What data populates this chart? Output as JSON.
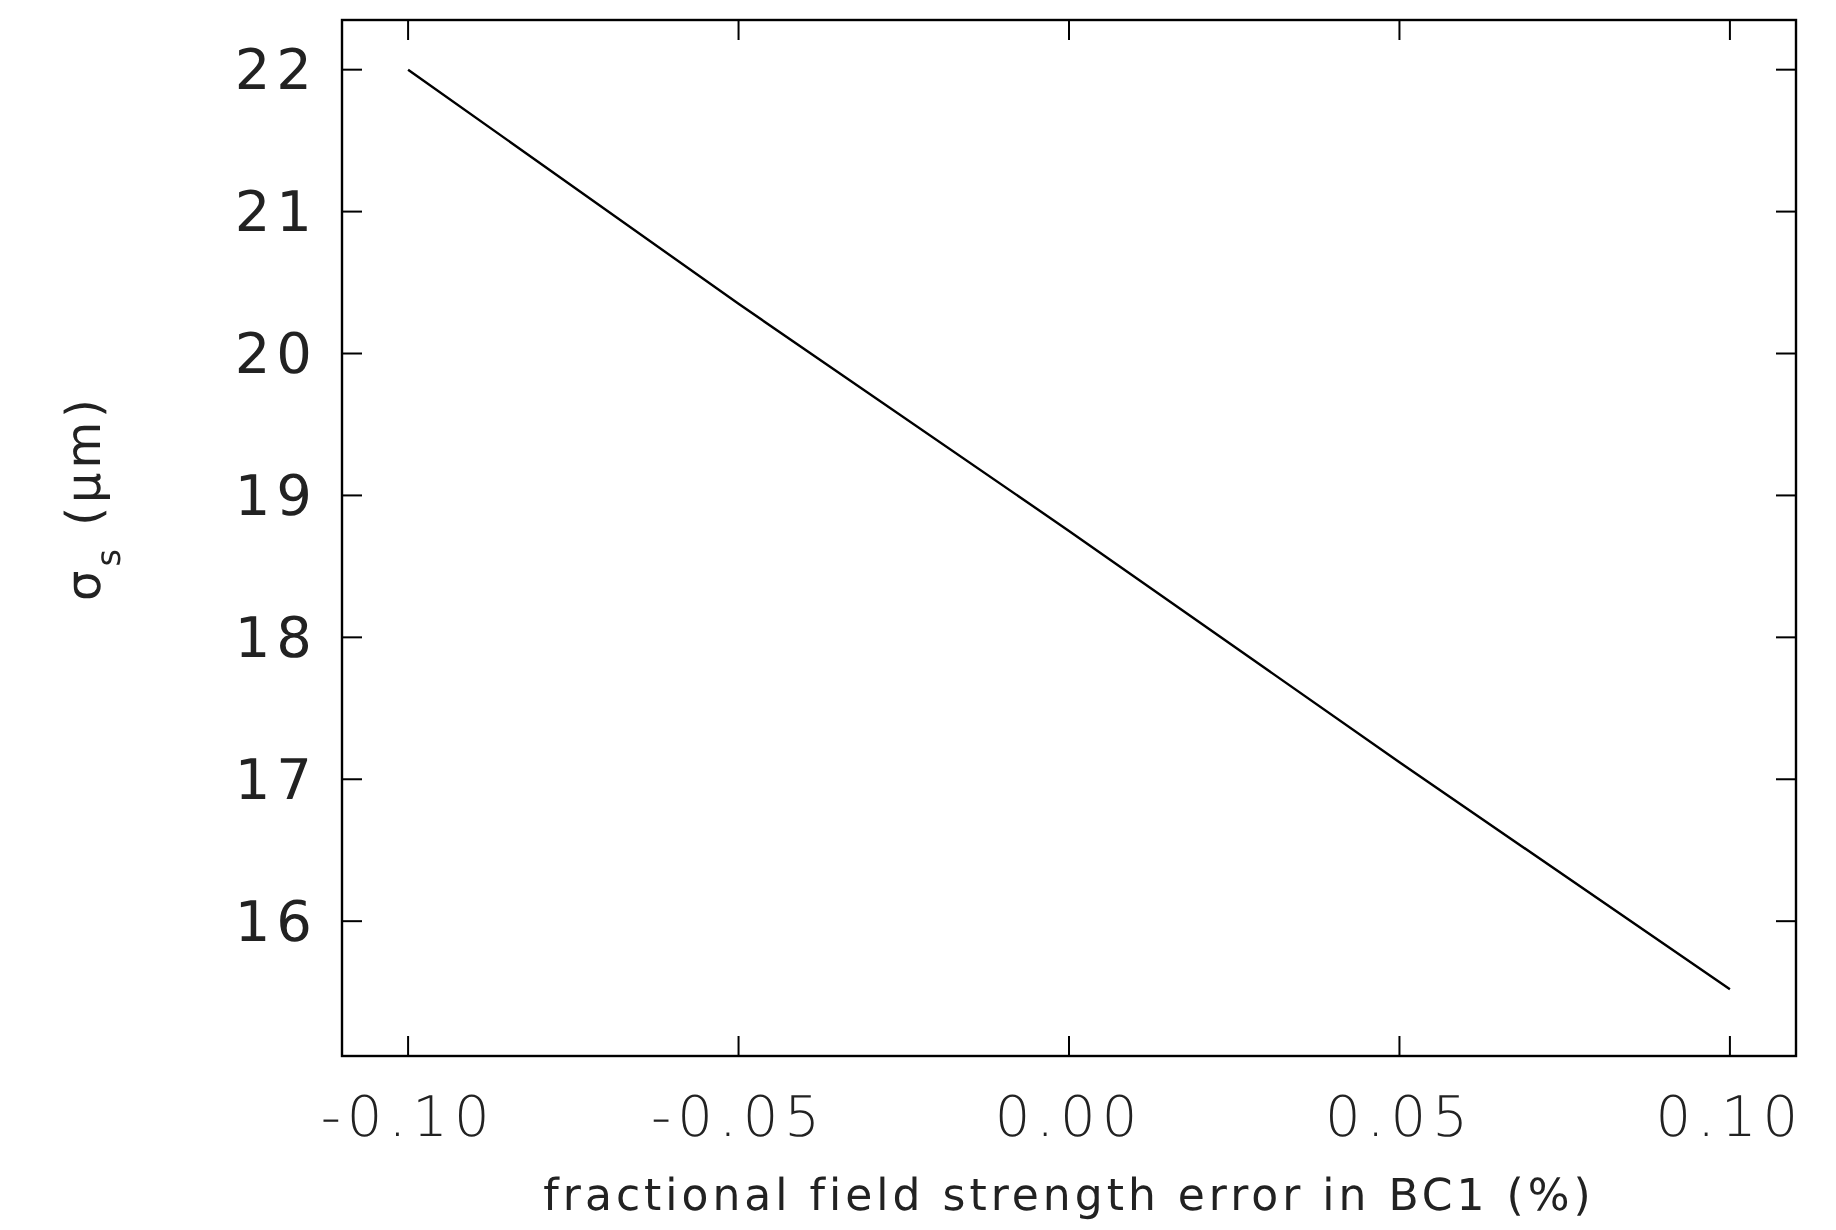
{
  "chart_data": {
    "type": "line",
    "xlabel": "fractional field strength error in BC1 (%)",
    "ylabel": "σ$_{s}$ (μm)",
    "x": [
      -0.1,
      -0.05,
      0,
      0.05,
      0.1
    ],
    "series": [
      {
        "color": "#000000",
        "values": [
          22.0,
          20.35,
          18.75,
          17.12,
          15.52
        ]
      }
    ],
    "xlim": [
      -0.11,
      0.11
    ],
    "xticks": [
      {
        "value": -0.1,
        "label": "-0.10"
      },
      {
        "value": -0.05,
        "label": "-0.05"
      },
      {
        "value": 0,
        "label": "0.00"
      },
      {
        "value": 0.05,
        "label": "0.05"
      },
      {
        "value": 0.1,
        "label": "0.10"
      }
    ],
    "ylim": [
      15.05,
      22.35
    ],
    "yticks": [
      16,
      17,
      18,
      19,
      20,
      21,
      22
    ],
    "grid": false,
    "marker": "none",
    "line_style": "solid"
  }
}
